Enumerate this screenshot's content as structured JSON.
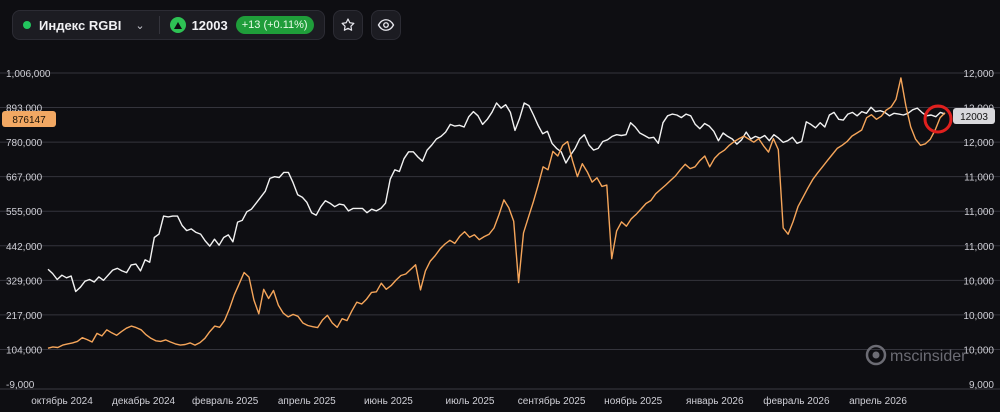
{
  "toolbar": {
    "instrument_name": "Индекс RGBI",
    "status_color": "#22c55e",
    "price": "12003",
    "change_text": "+13 (+0.11%)",
    "change_color": "#1f9d3a",
    "up_color": "#2ec254",
    "favorite_icon": "star-icon",
    "visibility_icon": "eye-icon"
  },
  "left_axis": {
    "labels": [
      "1,006,000",
      "893,000",
      "780,000",
      "667,000",
      "555,000",
      "442,000",
      "329,000",
      "217,000",
      "104,000",
      "-9,000"
    ],
    "current_badge": "876147",
    "badge_color": "#f2a863"
  },
  "right_axis": {
    "labels": [
      "12,000",
      "12,000",
      "12,000",
      "11,000",
      "11,000",
      "11,000",
      "10,000",
      "10,000",
      "10,000",
      "9,000"
    ],
    "current_badge": "12003"
  },
  "x_axis": {
    "labels": [
      "октябрь 2024",
      "декабрь 2024",
      "февраль 2025",
      "апрель 2025",
      "июнь 2025",
      "июль 2025",
      "сентябрь 2025",
      "ноябрь 2025",
      "январь 2026",
      "февраль 2026",
      "апрель 2026"
    ]
  },
  "watermark": "mscinsider",
  "chart_data": {
    "type": "line",
    "x_labels": [
      "октябрь 2024",
      "декабрь 2024",
      "февраль 2025",
      "апрель 2025",
      "июнь 2025",
      "июль 2025",
      "сентябрь 2025",
      "ноябрь 2025",
      "январь 2026",
      "февраль 2026",
      "апрель 2026"
    ],
    "y_left_ticks": [
      1006000,
      893000,
      780000,
      667000,
      555000,
      442000,
      329000,
      217000,
      104000,
      -9000
    ],
    "grid": true,
    "series": [
      {
        "axis": "right",
        "color": "#f2f2f2",
        "last_value": 12003,
        "values": [
          10190,
          10140,
          10070,
          10120,
          10090,
          10110,
          9930,
          9980,
          10050,
          10070,
          10040,
          10100,
          10060,
          10120,
          10180,
          10200,
          10170,
          10150,
          10240,
          10250,
          10170,
          10300,
          10270,
          10560,
          10600,
          10810,
          10800,
          10810,
          10810,
          10700,
          10640,
          10660,
          10620,
          10600,
          10520,
          10460,
          10540,
          10470,
          10560,
          10590,
          10510,
          10740,
          10760,
          10860,
          10890,
          10960,
          11030,
          11100,
          11250,
          11270,
          11260,
          11320,
          11320,
          11200,
          11060,
          11030,
          10970,
          10850,
          10820,
          10920,
          10990,
          10960,
          10920,
          10950,
          10940,
          10870,
          10900,
          10900,
          10900,
          10850,
          10890,
          10870,
          10900,
          10960,
          11240,
          11350,
          11330,
          11480,
          11560,
          11560,
          11500,
          11450,
          11580,
          11640,
          11710,
          11740,
          11790,
          11880,
          11860,
          11870,
          11850,
          11970,
          12030,
          11980,
          11880,
          11940,
          12020,
          12130,
          12070,
          12110,
          12020,
          11810,
          11950,
          12130,
          12100,
          11990,
          11870,
          11770,
          11800,
          11660,
          11600,
          11560,
          11430,
          11520,
          11600,
          11710,
          11760,
          11640,
          11580,
          11600,
          11680,
          11700,
          11740,
          11760,
          11750,
          11760,
          11900,
          11850,
          11780,
          11750,
          11720,
          11730,
          11660,
          11900,
          11980,
          12000,
          11990,
          11960,
          12000,
          11980,
          11880,
          11830,
          11890,
          11860,
          11800,
          11690,
          11780,
          11740,
          11710,
          11650,
          11700,
          11790,
          11710,
          11740,
          11720,
          11750,
          11690,
          11760,
          11720,
          11670,
          11690,
          11730,
          11660,
          11680,
          11910,
          11880,
          11840,
          11900,
          11850,
          11990,
          12020,
          11940,
          11930,
          12000,
          12020,
          11980,
          12030,
          12010,
          12080,
          12030,
          12040,
          12020,
          11980,
          12010,
          12000,
          11990,
          12010,
          12050,
          12070,
          12020,
          11980,
          11990,
          11970,
          12020,
          12003
        ]
      },
      {
        "axis": "left",
        "color": "#f5a55a",
        "last_value": 876147,
        "values": [
          108000,
          112000,
          110000,
          118000,
          122000,
          125000,
          130000,
          142000,
          136000,
          128000,
          156000,
          148000,
          168000,
          158000,
          150000,
          162000,
          173000,
          180000,
          175000,
          168000,
          152000,
          140000,
          132000,
          130000,
          135000,
          128000,
          122000,
          118000,
          120000,
          125000,
          118000,
          126000,
          140000,
          162000,
          180000,
          176000,
          198000,
          236000,
          282000,
          318000,
          355000,
          340000,
          265000,
          220000,
          300000,
          270000,
          296000,
          248000,
          222000,
          210000,
          218000,
          212000,
          190000,
          182000,
          178000,
          175000,
          200000,
          215000,
          190000,
          176000,
          204000,
          198000,
          230000,
          258000,
          252000,
          268000,
          290000,
          292000,
          320000,
          300000,
          312000,
          330000,
          345000,
          350000,
          365000,
          380000,
          298000,
          360000,
          392000,
          410000,
          432000,
          448000,
          460000,
          450000,
          473000,
          488000,
          470000,
          478000,
          462000,
          472000,
          480000,
          500000,
          544000,
          592000,
          566000,
          522000,
          322000,
          484000,
          535000,
          585000,
          640000,
          700000,
          690000,
          750000,
          735000,
          770000,
          782000,
          720000,
          668000,
          710000,
          684000,
          650000,
          664000,
          636000,
          640000,
          400000,
          490000,
          520000,
          506000,
          530000,
          545000,
          562000,
          580000,
          590000,
          612000,
          626000,
          640000,
          655000,
          670000,
          690000,
          708000,
          694000,
          700000,
          720000,
          735000,
          700000,
          728000,
          744000,
          754000,
          770000,
          782000,
          792000,
          800000,
          790000,
          780000,
          792000,
          768000,
          748000,
          792000,
          756000,
          500000,
          480000,
          520000,
          570000,
          600000,
          630000,
          658000,
          680000,
          700000,
          720000,
          740000,
          760000,
          770000,
          782000,
          800000,
          810000,
          820000,
          860000,
          870000,
          855000,
          865000,
          885000,
          895000,
          920000,
          990000,
          900000,
          830000,
          790000,
          770000,
          775000,
          790000,
          820000,
          860000,
          876147
        ]
      }
    ],
    "annotation": "red circle marking the latest data point"
  }
}
